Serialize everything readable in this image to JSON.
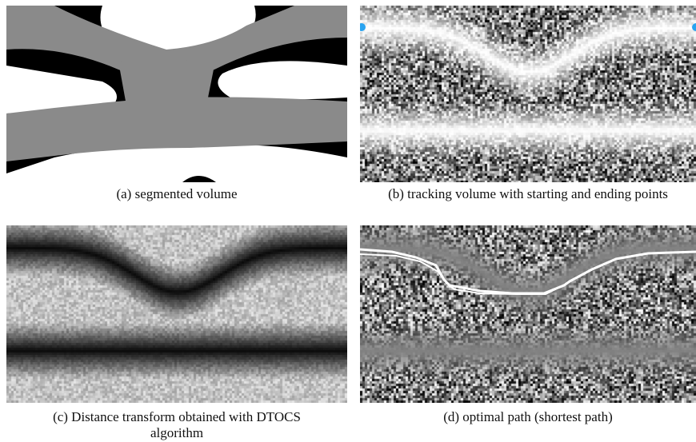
{
  "panels": [
    {
      "id": "a",
      "caption": "(a) segmented volume"
    },
    {
      "id": "b",
      "caption": "(b) tracking volume with starting and ending points"
    },
    {
      "id": "c",
      "caption": "(c) Distance transform obtained with DTOCS algorithm"
    },
    {
      "id": "d",
      "caption": "(d) optimal path (shortest path)"
    }
  ],
  "colors": {
    "background_label": "#000000",
    "vessel_label": "#8a8a8a",
    "tissue_label": "#ffffff",
    "endpoint_marker": "#29a3f0",
    "path_line": "#ffffff"
  }
}
